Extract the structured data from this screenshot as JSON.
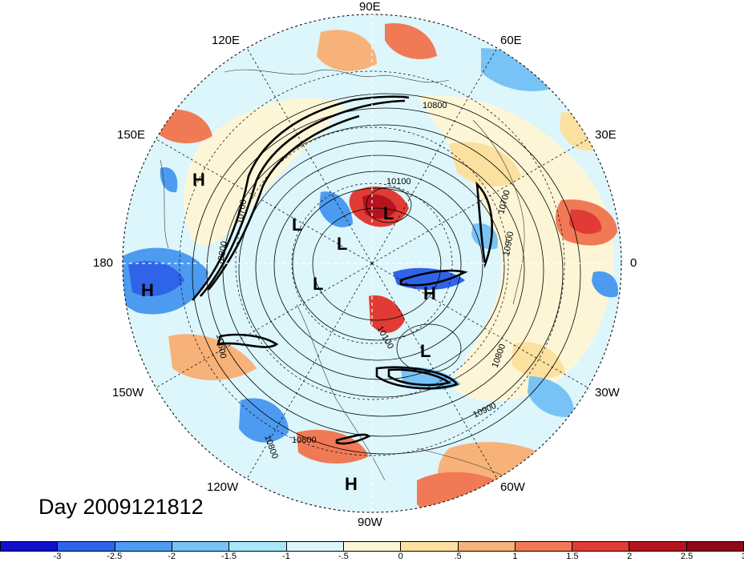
{
  "longitude_labels": {
    "lon_90e": "90E",
    "lon_60e": "60E",
    "lon_120e": "120E",
    "lon_150e": "150E",
    "lon_30e": "30E",
    "lon_180": "180",
    "lon_0": "0",
    "lon_150w": "150W",
    "lon_30w": "30W",
    "lon_120w": "120W",
    "lon_60w": "60W",
    "lon_90w": "90W"
  },
  "pressure_systems": {
    "h1": "H",
    "h2": "H",
    "h3": "H",
    "h4": "H",
    "l1": "L",
    "l2": "L",
    "l3": "L",
    "l4": "L",
    "l5": "L"
  },
  "contour_labels": {
    "c10800a": "10800",
    "c10100": "10100",
    "c10700a": "10700",
    "c10900a": "10900",
    "c10800b": "10800",
    "c10900b": "10900",
    "c10800c": "10800",
    "c10800d": "10800",
    "c10600": "10600",
    "c10800e": "10800",
    "c10700b": "10700",
    "c10100b": "10100"
  },
  "day_label": "Day 2009121812",
  "colorbar": {
    "colors": [
      "#1010cc",
      "#2f63e8",
      "#4c9bf0",
      "#78c3f5",
      "#a8e6fa",
      "#dcf6fc",
      "#fdf6d6",
      "#fbe0a0",
      "#f7b27a",
      "#f07a55",
      "#e03c35",
      "#b5141f",
      "#8e0a18"
    ],
    "ticks": [
      "-3",
      "-2.5",
      "-2",
      "-1.5",
      "-1",
      "-.5",
      "0",
      ".5",
      "1",
      "1.5",
      "2",
      "2.5",
      "3"
    ]
  }
}
